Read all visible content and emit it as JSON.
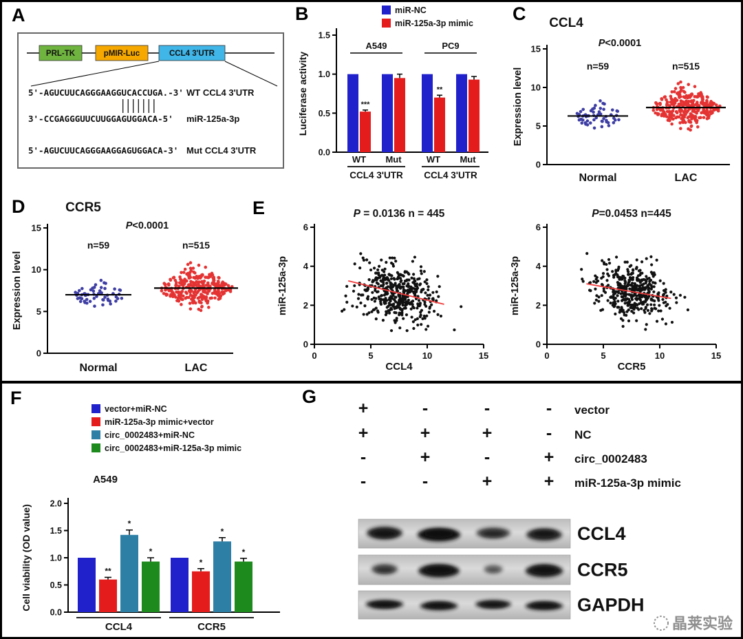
{
  "figure": {
    "bg": "#ffffff",
    "border_color": "#000000"
  },
  "panel_labels": {
    "A": "A",
    "B": "B",
    "C": "C",
    "D": "D",
    "E": "E",
    "F": "F",
    "G": "G"
  },
  "panels": {
    "A": {
      "construct_boxes": [
        {
          "label": "PRL-TK",
          "color": "#6fb43f"
        },
        {
          "label": "pMIR-Luc",
          "color": "#f6a800"
        },
        {
          "label": "CCL4 3'UTR",
          "color": "#3fb5e8"
        }
      ],
      "wt_seq": "5'-AGUCUUCAGGGAAGGUCACCUGA.-3'",
      "wt_name": "WT CCL4 3'UTR",
      "mir_seq": "3'-CCGAGGGUUCUUGGAGUGGACA-5'",
      "mir_name": "miR-125a-3p",
      "mut_seq": "5'-AGUCUUCAGGGAAGGAGUGGACA-3'",
      "mut_name": "Mut CCL4 3'UTR"
    },
    "G": {
      "matrix_rows": [
        {
          "label": "vector",
          "values": [
            "+",
            "-",
            "-",
            "-"
          ]
        },
        {
          "label": "NC",
          "values": [
            "+",
            "+",
            "+",
            "-"
          ]
        },
        {
          "label": "circ_0002483",
          "values": [
            "-",
            "+",
            "-",
            "+"
          ]
        },
        {
          "label": "miR-125a-3p mimic",
          "values": [
            "-",
            "-",
            "+",
            "+"
          ]
        }
      ],
      "blots": [
        {
          "label": "CCL4",
          "intensities": [
            0.85,
            1.0,
            0.6,
            0.8
          ],
          "widths": [
            1.0,
            1.2,
            0.95,
            1.0
          ],
          "thickness": 1.0
        },
        {
          "label": "CCR5",
          "intensities": [
            0.5,
            0.95,
            0.25,
            0.9
          ],
          "widths": [
            0.75,
            1.15,
            0.55,
            1.05
          ],
          "thickness": 1.0
        },
        {
          "label": "GAPDH",
          "intensities": [
            0.95,
            0.95,
            0.9,
            0.95
          ],
          "widths": [
            1.05,
            1.05,
            1.0,
            1.05
          ],
          "thickness": 0.65
        }
      ],
      "watermark": "晶莱实验"
    }
  },
  "chart_data": [
    {
      "panel": "B",
      "type": "bar",
      "ylabel": "Luciferase activity",
      "ylim": [
        0,
        1.5
      ],
      "yticks": [
        0,
        0.5,
        1,
        1.5
      ],
      "legend": [
        {
          "name": "miR-NC",
          "color": "#2121cc"
        },
        {
          "name": "miR-125a-3p mimic",
          "color": "#e51c1c"
        }
      ],
      "cell_lines": [
        "A549",
        "PC9"
      ],
      "group_axis_label": "CCL4 3'UTR",
      "groups": [
        {
          "condition": "WT",
          "bars": [
            {
              "series": "miR-NC",
              "value": 1.0,
              "err": 0
            },
            {
              "series": "miR-125a-3p mimic",
              "value": 0.52,
              "err": 0.02,
              "sig": "***"
            }
          ]
        },
        {
          "condition": "Mut",
          "bars": [
            {
              "series": "miR-NC",
              "value": 1.0,
              "err": 0
            },
            {
              "series": "miR-125a-3p mimic",
              "value": 0.95,
              "err": 0.05
            }
          ]
        },
        {
          "condition": "WT",
          "bars": [
            {
              "series": "miR-NC",
              "value": 1.0,
              "err": 0
            },
            {
              "series": "miR-125a-3p mimic",
              "value": 0.7,
              "err": 0.03,
              "sig": "**"
            }
          ]
        },
        {
          "condition": "Mut",
          "bars": [
            {
              "series": "miR-NC",
              "value": 1.0,
              "err": 0
            },
            {
              "series": "miR-125a-3p mimic",
              "value": 0.93,
              "err": 0.04
            }
          ]
        }
      ]
    },
    {
      "panel": "C",
      "type": "dotplot",
      "title": "CCL4",
      "p_text": "P<0.0001",
      "ylabel": "Expression level",
      "ylim": [
        0,
        15
      ],
      "yticks": [
        0,
        5,
        10,
        15
      ],
      "groups": [
        {
          "label": "Normal",
          "n_label": "n=59",
          "n": 59,
          "mean": 6.3,
          "sd": 0.8,
          "color": "#3d3da4"
        },
        {
          "label": "LAC",
          "n_label": "n=515",
          "n": 515,
          "mean": 7.4,
          "sd": 1.2,
          "color": "#e43333"
        }
      ]
    },
    {
      "panel": "D",
      "type": "dotplot",
      "title": "CCR5",
      "p_text": "P<0.0001",
      "ylabel": "Expression level",
      "ylim": [
        0,
        15
      ],
      "yticks": [
        0,
        5,
        10,
        15
      ],
      "groups": [
        {
          "label": "Normal",
          "n_label": "n=59",
          "n": 59,
          "mean": 7.0,
          "sd": 0.7,
          "color": "#3d3da4"
        },
        {
          "label": "LAC",
          "n_label": "n=515",
          "n": 515,
          "mean": 7.8,
          "sd": 1.1,
          "color": "#e43333"
        }
      ]
    },
    {
      "panel": "E1",
      "type": "scatter",
      "title": "P = 0.0136  n = 445",
      "n": 445,
      "xlabel": "CCL4",
      "ylabel": "miR-125a-3p",
      "xlim": [
        0,
        15
      ],
      "ylim": [
        0,
        6
      ],
      "xticks": [
        0,
        5,
        10,
        15
      ],
      "yticks": [
        0,
        2,
        4,
        6
      ],
      "x_mean": 7.4,
      "x_sd": 1.7,
      "y_sd": 0.72,
      "seed": 777,
      "trend": {
        "x1": 3,
        "y1": 3.25,
        "x2": 11.5,
        "y2": 2.05,
        "color": "#f03a3a"
      }
    },
    {
      "panel": "E2",
      "type": "scatter",
      "title": "P=0.0453 n=445",
      "n": 445,
      "xlabel": "CCR5",
      "ylabel": "miR-125a-3p",
      "xlim": [
        0,
        15
      ],
      "ylim": [
        0,
        6
      ],
      "xticks": [
        0,
        5,
        10,
        15
      ],
      "yticks": [
        0,
        2,
        4,
        6
      ],
      "x_mean": 7.6,
      "x_sd": 1.6,
      "y_sd": 0.7,
      "seed": 888,
      "trend": {
        "x1": 3.5,
        "y1": 3.1,
        "x2": 11,
        "y2": 2.35,
        "color": "#f03a3a"
      }
    },
    {
      "panel": "F",
      "type": "bar",
      "title": "A549",
      "ylabel": "Cell viability (OD value)",
      "ylim": [
        0,
        2
      ],
      "yticks": [
        0,
        0.5,
        1,
        1.5,
        2
      ],
      "legend": [
        {
          "name": "vector+miR-NC",
          "color": "#2121cc"
        },
        {
          "name": "miR-125a-3p mimic+vector",
          "color": "#e51c1c"
        },
        {
          "name": "circ_0002483+miR-NC",
          "color": "#2d7fa6"
        },
        {
          "name": "circ_0002483+miR-125a-3p mimic",
          "color": "#1d8a1d"
        }
      ],
      "categories": [
        "CCL4",
        "CCR5"
      ],
      "series": [
        {
          "name": "vector+miR-NC",
          "values": [
            1.0,
            1.0
          ],
          "err": [
            0,
            0
          ],
          "sig": [
            "",
            ""
          ]
        },
        {
          "name": "miR-125a-3p mimic+vector",
          "values": [
            0.6,
            0.75
          ],
          "err": [
            0.04,
            0.05
          ],
          "sig": [
            "**",
            "*"
          ]
        },
        {
          "name": "circ_0002483+miR-NC",
          "values": [
            1.42,
            1.3
          ],
          "err": [
            0.09,
            0.07
          ],
          "sig": [
            "*",
            "*"
          ]
        },
        {
          "name": "circ_0002483+miR-125a-3p mimic",
          "values": [
            0.93,
            0.93
          ],
          "err": [
            0.07,
            0.06
          ],
          "sig": [
            "*",
            "*"
          ]
        }
      ]
    }
  ]
}
